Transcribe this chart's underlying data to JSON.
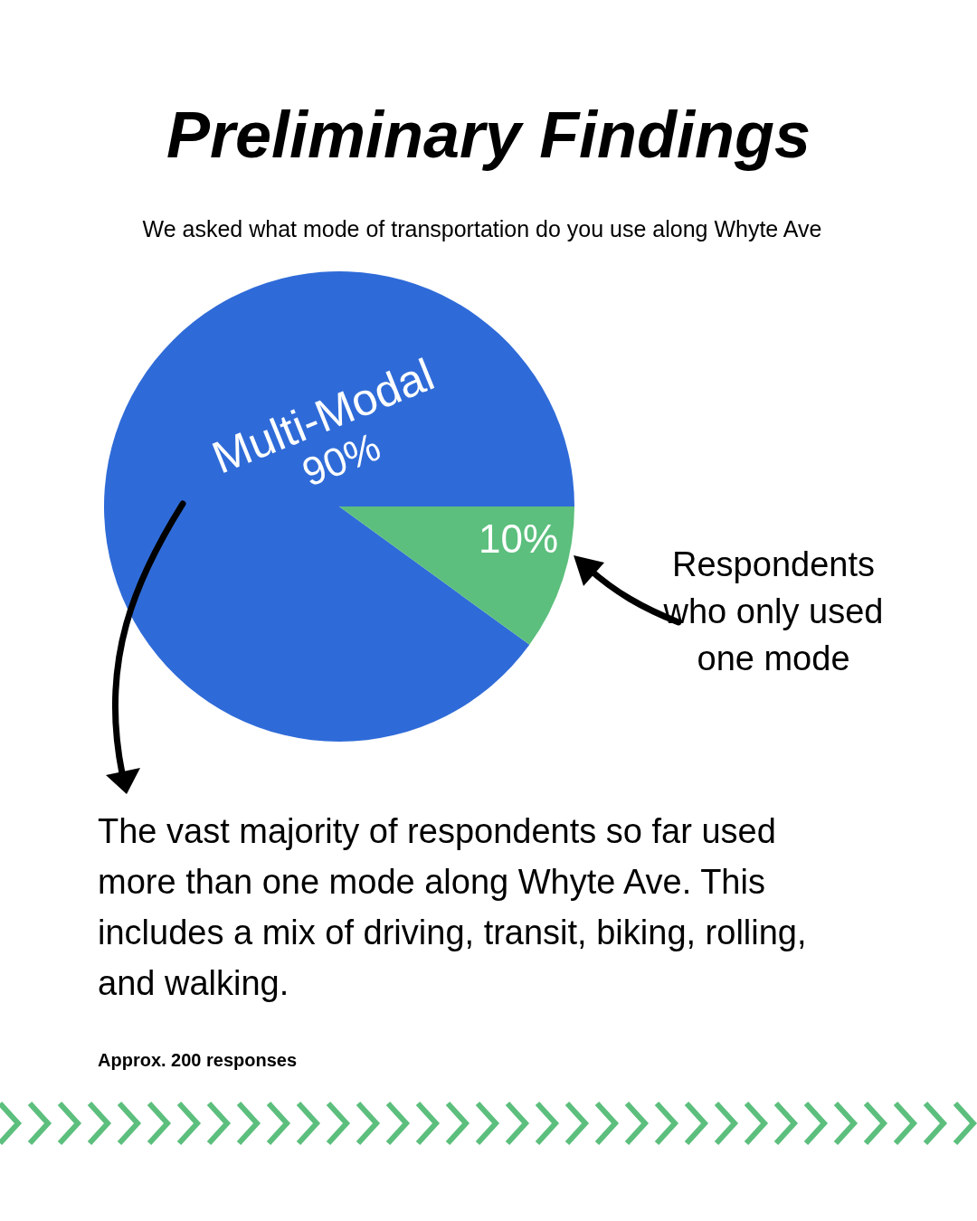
{
  "chart_data": {
    "type": "pie",
    "title": "Preliminary Findings",
    "subtitle": "We asked what mode of transportation do you use along Whyte Ave",
    "categories": [
      "Multi-Modal",
      "Respondents who only used one mode"
    ],
    "values": [
      90,
      10
    ],
    "colors": [
      "#2f6bd8",
      "#5cbf7d"
    ],
    "value_labels": [
      "90%",
      "10%"
    ],
    "annotations": [
      "The vast majority of respondents so far used more than one mode along Whyte Ave. This includes a mix of driving, transit, biking, rolling, and walking.",
      "Approx. 200 responses"
    ]
  }
}
